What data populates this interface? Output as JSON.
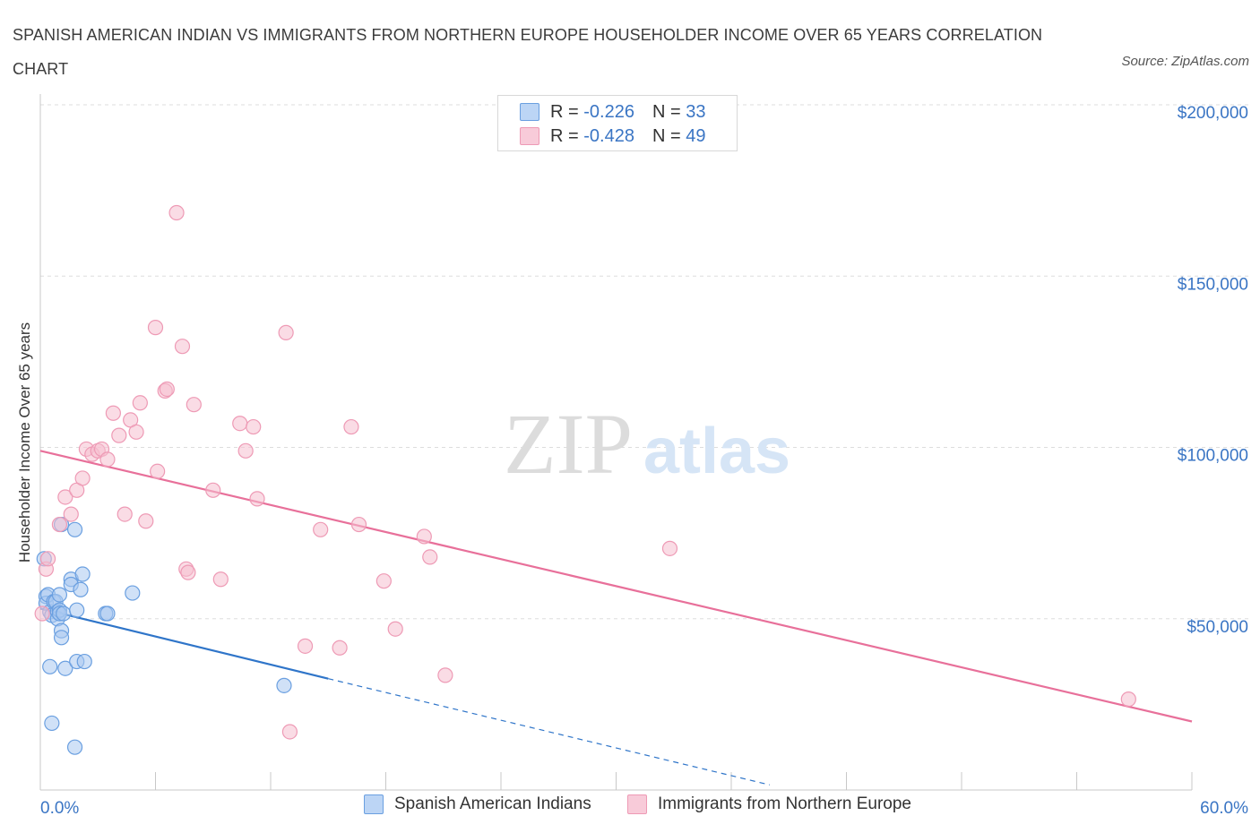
{
  "title": "SPANISH AMERICAN INDIAN VS IMMIGRANTS FROM NORTHERN EUROPE HOUSEHOLDER INCOME OVER 65 YEARS CORRELATION CHART",
  "source": "Source: ZipAtlas.com",
  "legend_top": {
    "rows": [
      {
        "r_label": "R = ",
        "r_value": "-0.226",
        "n_label": "N = ",
        "n_value": "33"
      },
      {
        "r_label": "R = ",
        "r_value": "-0.428",
        "n_label": "N = ",
        "n_value": "49"
      }
    ]
  },
  "legend_bottom": [
    "Spanish American Indians",
    "Immigrants from Northern Europe"
  ],
  "colors": {
    "blue_fill": "#a9c8f0",
    "blue_stroke": "#6a9fe0",
    "blue_line": "#2f75c9",
    "pink_fill": "#f6bfd0",
    "pink_stroke": "#ee9ab5",
    "pink_line": "#e8709a",
    "axis_text": "#3a75c4",
    "grid": "#dddddd"
  },
  "chart_data": {
    "type": "scatter",
    "title": "SPANISH AMERICAN INDIAN VS IMMIGRANTS FROM NORTHERN EUROPE HOUSEHOLDER INCOME OVER 65 YEARS CORRELATION CHART",
    "xlabel": "",
    "ylabel": "Householder Income Over 65 years",
    "xlim": [
      0,
      60
    ],
    "ylim": [
      0,
      200000
    ],
    "x_tick_labels": [
      "0.0%",
      "60.0%"
    ],
    "y_tick_labels": [
      "$50,000",
      "$100,000",
      "$150,000",
      "$200,000"
    ],
    "y_ticks": [
      50000,
      100000,
      150000,
      200000
    ],
    "watermark": {
      "bold": "ZIP",
      "light": "atlas"
    },
    "series": [
      {
        "name": "Spanish American Indians",
        "color": "blue",
        "r": -0.226,
        "n": 33,
        "trend": {
          "x0": 0,
          "y0": 53000,
          "x1": 15,
          "y1": 32500,
          "dash_to_x": 38,
          "dash_to_y": 1500
        },
        "points": [
          [
            0.2,
            67500
          ],
          [
            0.3,
            56500
          ],
          [
            0.3,
            54500
          ],
          [
            0.4,
            57000
          ],
          [
            0.5,
            52000
          ],
          [
            0.5,
            36000
          ],
          [
            0.6,
            19500
          ],
          [
            0.6,
            51000
          ],
          [
            0.7,
            55000
          ],
          [
            0.8,
            55000
          ],
          [
            0.9,
            52000
          ],
          [
            0.9,
            50000
          ],
          [
            1.0,
            57000
          ],
          [
            1.0,
            52500
          ],
          [
            1.0,
            51500
          ],
          [
            1.1,
            77500
          ],
          [
            1.1,
            46500
          ],
          [
            1.1,
            44500
          ],
          [
            1.2,
            51500
          ],
          [
            1.3,
            35500
          ],
          [
            1.6,
            61500
          ],
          [
            1.6,
            60000
          ],
          [
            1.8,
            76000
          ],
          [
            1.8,
            12500
          ],
          [
            1.9,
            52500
          ],
          [
            1.9,
            37500
          ],
          [
            2.1,
            58500
          ],
          [
            2.2,
            63000
          ],
          [
            2.3,
            37500
          ],
          [
            3.4,
            51500
          ],
          [
            3.5,
            51500
          ],
          [
            4.8,
            57500
          ],
          [
            12.7,
            30500
          ]
        ]
      },
      {
        "name": "Immigrants from Northern Europe",
        "color": "pink",
        "r": -0.428,
        "n": 49,
        "trend": {
          "x0": 0,
          "y0": 99000,
          "x1": 60,
          "y1": 20000
        },
        "points": [
          [
            0.1,
            51500
          ],
          [
            0.3,
            64500
          ],
          [
            0.4,
            67500
          ],
          [
            1.0,
            77500
          ],
          [
            1.3,
            85500
          ],
          [
            1.6,
            80500
          ],
          [
            1.9,
            87500
          ],
          [
            2.2,
            91000
          ],
          [
            2.4,
            99500
          ],
          [
            2.7,
            98000
          ],
          [
            3.0,
            99000
          ],
          [
            3.2,
            99500
          ],
          [
            3.5,
            96500
          ],
          [
            3.8,
            110000
          ],
          [
            4.1,
            103500
          ],
          [
            4.4,
            80500
          ],
          [
            4.7,
            108000
          ],
          [
            5.0,
            104500
          ],
          [
            5.2,
            113000
          ],
          [
            5.5,
            78500
          ],
          [
            6.0,
            135000
          ],
          [
            6.1,
            93000
          ],
          [
            6.5,
            116500
          ],
          [
            6.6,
            117000
          ],
          [
            7.1,
            168500
          ],
          [
            7.4,
            129500
          ],
          [
            7.6,
            64500
          ],
          [
            7.7,
            63500
          ],
          [
            8.0,
            112500
          ],
          [
            9.0,
            87500
          ],
          [
            9.4,
            61500
          ],
          [
            10.4,
            107000
          ],
          [
            10.7,
            99000
          ],
          [
            11.1,
            106000
          ],
          [
            11.3,
            85000
          ],
          [
            12.8,
            133500
          ],
          [
            13.0,
            17000
          ],
          [
            13.8,
            42000
          ],
          [
            14.6,
            76000
          ],
          [
            15.6,
            41500
          ],
          [
            16.2,
            106000
          ],
          [
            16.6,
            77500
          ],
          [
            17.9,
            61000
          ],
          [
            18.5,
            47000
          ],
          [
            20.0,
            74000
          ],
          [
            20.3,
            68000
          ],
          [
            21.1,
            33500
          ],
          [
            32.8,
            70500
          ],
          [
            56.7,
            26500
          ]
        ]
      }
    ]
  }
}
